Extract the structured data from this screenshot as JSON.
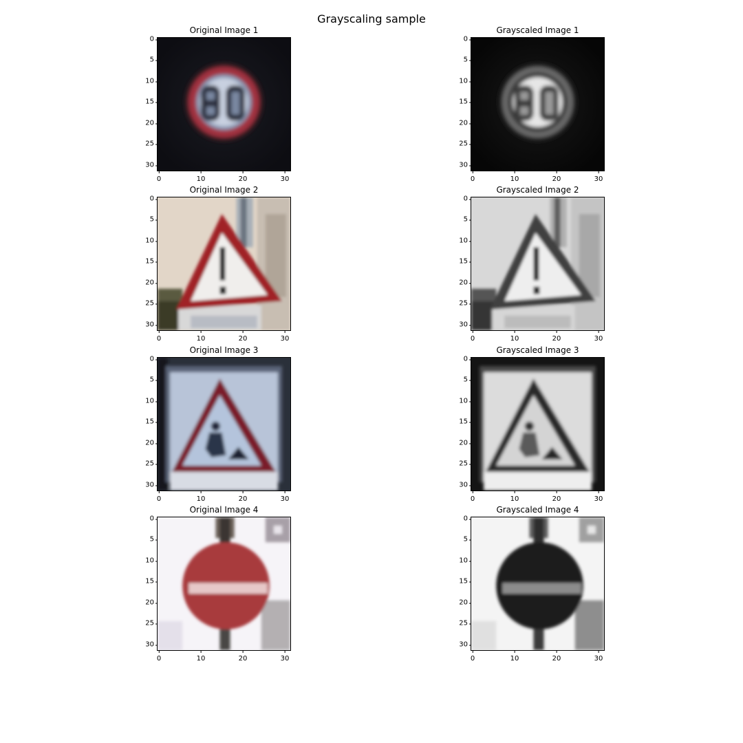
{
  "figure": {
    "title": "Grayscaling sample"
  },
  "axes": {
    "xticks": [
      "0",
      "10",
      "20",
      "30"
    ],
    "yticks": [
      "0",
      "5",
      "10",
      "15",
      "20",
      "25",
      "30"
    ]
  },
  "panels": [
    {
      "title": "Original Image 1",
      "image": "speed-limit-80-sign",
      "mode": "color"
    },
    {
      "title": "Grayscaled Image 1",
      "image": "speed-limit-80-sign",
      "mode": "gray"
    },
    {
      "title": "Original Image 2",
      "image": "general-caution-sign",
      "mode": "color"
    },
    {
      "title": "Grayscaled Image 2",
      "image": "general-caution-sign",
      "mode": "gray"
    },
    {
      "title": "Original Image 3",
      "image": "road-work-sign",
      "mode": "color"
    },
    {
      "title": "Grayscaled Image 3",
      "image": "road-work-sign",
      "mode": "gray"
    },
    {
      "title": "Original Image 4",
      "image": "no-entry-sign",
      "mode": "color"
    },
    {
      "title": "Grayscaled Image 4",
      "image": "no-entry-sign",
      "mode": "gray"
    }
  ]
}
